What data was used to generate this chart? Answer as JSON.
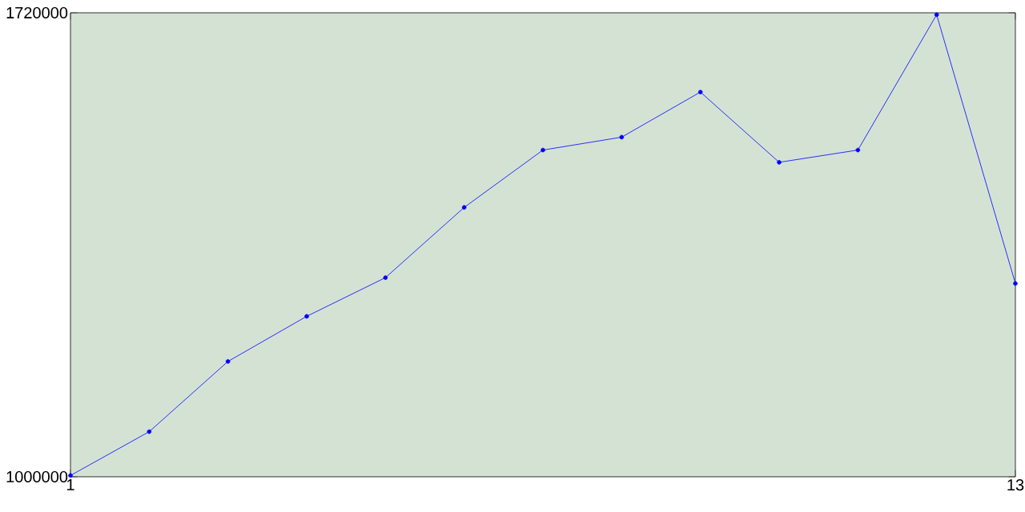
{
  "chart_data": {
    "type": "line",
    "x": [
      1,
      2,
      3,
      4,
      5,
      6,
      7,
      8,
      9,
      10,
      11,
      12,
      13
    ],
    "series": [
      {
        "color": "#0000ff",
        "values": [
          1002000,
          1070000,
          1179000,
          1249000,
          1309000,
          1418000,
          1507000,
          1527000,
          1597000,
          1488000,
          1507000,
          1717000,
          1300000
        ]
      }
    ],
    "xlim": [
      1,
      13
    ],
    "ylim": [
      1000000,
      1720000
    ],
    "xticks": [
      1,
      13
    ],
    "yticks": [
      1000000,
      1720000
    ],
    "grid": false,
    "marker": "circle",
    "line_style": "solid"
  }
}
